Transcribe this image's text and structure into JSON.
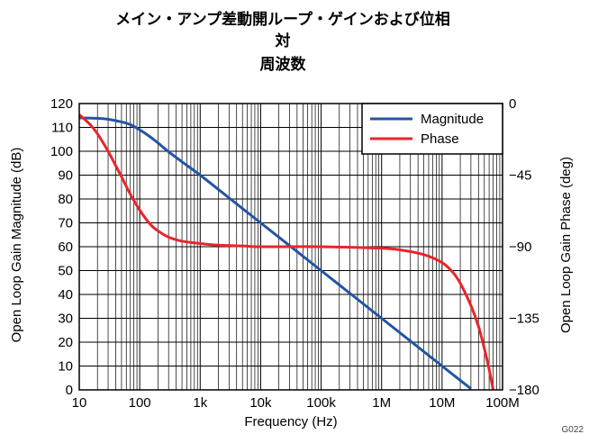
{
  "chart_data": {
    "type": "line",
    "title": [
      "メイン・アンプ差動開ループ・ゲインおよび位相",
      "対",
      "周波数"
    ],
    "xlabel": "Frequency (Hz)",
    "ylabel_left": "Open Loop Gain Magnitude (dB)",
    "ylabel_right": "Open Loop Gain Phase (deg)",
    "x_scale": "log",
    "xlim": [
      10,
      100000000
    ],
    "ylim_left": [
      0,
      120
    ],
    "ylim_right": [
      -180,
      0
    ],
    "x_tick_values": [
      10,
      100,
      1000,
      10000,
      100000,
      1000000,
      10000000,
      100000000
    ],
    "x_tick_labels": [
      "10",
      "100",
      "1k",
      "10k",
      "100k",
      "1M",
      "10M",
      "100M"
    ],
    "y_left_ticks": [
      "0",
      "10",
      "20",
      "30",
      "40",
      "50",
      "60",
      "70",
      "80",
      "90",
      "100",
      "110",
      "120"
    ],
    "y_left_tick_values": [
      0,
      10,
      20,
      30,
      40,
      50,
      60,
      70,
      80,
      90,
      100,
      110,
      120
    ],
    "y_right_ticks": [
      "0",
      "−45",
      "−90",
      "−135",
      "−180"
    ],
    "y_right_tick_values": [
      0,
      -45,
      -90,
      -135,
      -180
    ],
    "grid": true,
    "legend_position": "top-right",
    "series": [
      {
        "name": "Magnitude",
        "color": "#2255a4",
        "axis": "left",
        "x": [
          10,
          20,
          30,
          50,
          70,
          100,
          150,
          200,
          300,
          500,
          1000,
          2000,
          5000,
          10000,
          100000,
          1000000,
          10000000,
          20000000,
          30000000
        ],
        "y": [
          114,
          113.8,
          113.4,
          112.3,
          111.2,
          109,
          106,
          103.5,
          99.8,
          95.6,
          90,
          84,
          76,
          70,
          50,
          30,
          10,
          4,
          0.5
        ]
      },
      {
        "name": "Phase",
        "color": "#e8252b",
        "axis": "right",
        "x": [
          10,
          15,
          20,
          30,
          40,
          50,
          70,
          100,
          150,
          200,
          300,
          500,
          1000,
          2000,
          5000,
          10000,
          100000,
          1000000,
          2000000,
          5000000,
          10000000,
          15000000,
          20000000,
          30000000,
          40000000,
          50000000,
          60000000,
          70000000
        ],
        "y": [
          -7,
          -13,
          -19,
          -30,
          -39,
          -46,
          -57,
          -67,
          -76,
          -80,
          -84,
          -86.5,
          -88,
          -89,
          -89.5,
          -90,
          -90,
          -91,
          -92,
          -95,
          -100,
          -106,
          -113,
          -127,
          -140,
          -154,
          -167,
          -180
        ]
      }
    ],
    "annotation": "G022"
  }
}
